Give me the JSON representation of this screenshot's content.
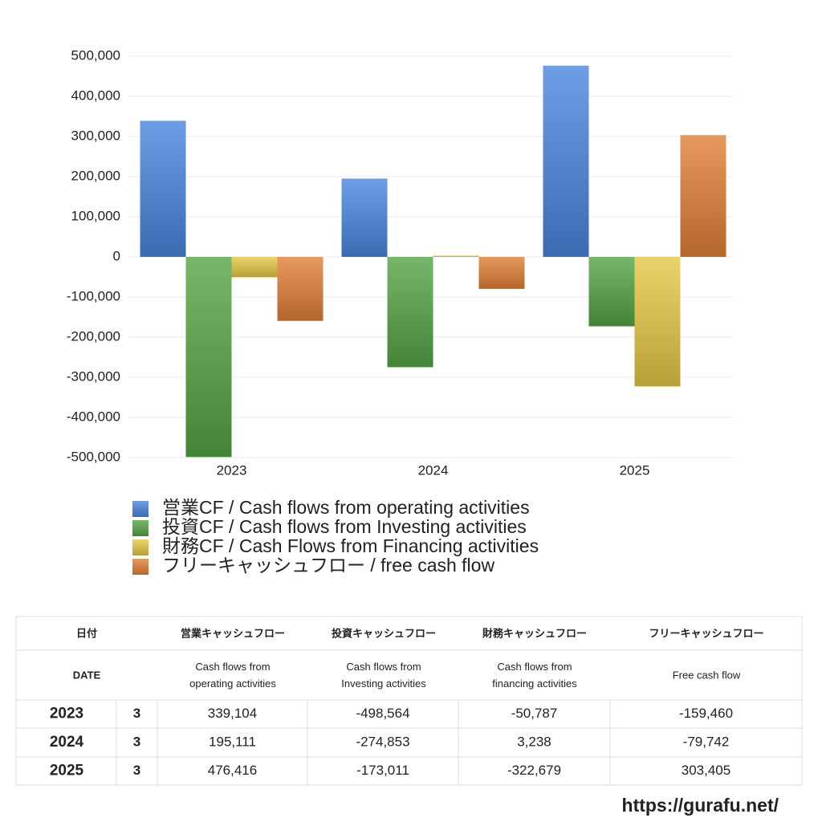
{
  "chart_data": {
    "type": "bar",
    "categories": [
      "2023",
      "2024",
      "2025"
    ],
    "series": [
      {
        "name": "営業CF / Cash flows from operating activities",
        "color": "#4a86e0",
        "values": [
          339104,
          195111,
          476416
        ]
      },
      {
        "name": "投資CF / Cash flows from Investing activities",
        "color": "#55a545",
        "values": [
          -498564,
          -274853,
          -173011
        ]
      },
      {
        "name": "財務CF / Cash Flows from Financing activities",
        "color": "#e6c845",
        "values": [
          -50787,
          3238,
          -322679
        ]
      },
      {
        "name": "フリーキャッシュフロー / free cash flow",
        "color": "#e27f35",
        "values": [
          -159460,
          -79742,
          303405
        ]
      }
    ],
    "ylim": [
      -500000,
      500000
    ],
    "yticks": [
      {
        "value": -500000,
        "label": "-500,000"
      },
      {
        "value": -400000,
        "label": "-400,000"
      },
      {
        "value": -300000,
        "label": "-300,000"
      },
      {
        "value": -200000,
        "label": "-200,000"
      },
      {
        "value": -100000,
        "label": "-100,000"
      },
      0,
      {
        "value": 100000,
        "label": "100,000"
      },
      {
        "value": 200000,
        "label": "200,000"
      },
      {
        "value": 300000,
        "label": "300,000"
      },
      {
        "value": 400000,
        "label": "400,000"
      },
      {
        "value": 500000,
        "label": "500,000"
      }
    ],
    "grid": true
  },
  "table": {
    "header": [
      "日付",
      "営業キャッシュフロー",
      "投資キャッシュフロー",
      "財務キャッシュフロー",
      "フリーキャッシュフロー"
    ],
    "subheader": [
      [
        "DATE"
      ],
      [
        "Cash flows from",
        "operating activities"
      ],
      [
        "Cash flows from",
        "Investing activities"
      ],
      [
        "Cash flows from",
        "financing activities"
      ],
      [
        "Free cash flow"
      ]
    ],
    "rows": [
      [
        "2023",
        "3",
        "339,104",
        "-498,564",
        "-50,787",
        "-159,460"
      ],
      [
        "2024",
        "3",
        "195,111",
        "-274,853",
        "3,238",
        "-79,742"
      ],
      [
        "2025",
        "3",
        "476,416",
        "-173,011",
        "-322,679",
        "303,405"
      ]
    ],
    "negative_color": "#d24a2e"
  },
  "footer": "https://gurafu.net/"
}
